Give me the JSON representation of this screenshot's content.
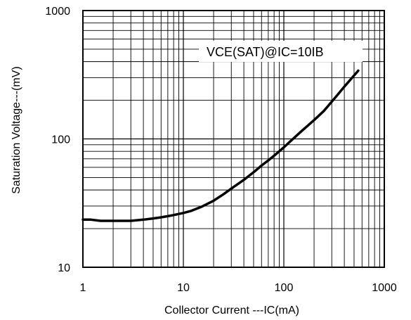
{
  "chart_data": {
    "type": "line",
    "title": "",
    "xlabel": "Collector Current ---IC(mA)",
    "ylabel": "Saturation Voltage---(mV)",
    "xscale": "log",
    "yscale": "log",
    "xlim": [
      1,
      1000
    ],
    "ylim": [
      10,
      1000
    ],
    "grid": true,
    "x_ticks": [
      "1",
      "10",
      "100",
      "1000"
    ],
    "y_ticks": [
      "10",
      "100",
      "1000"
    ],
    "annotation": "VCE(SAT)@IC=10IB",
    "series": [
      {
        "x": [
          1,
          1.2,
          1.5,
          2,
          3,
          4,
          5,
          6,
          7,
          8,
          10,
          12,
          15,
          20,
          25,
          30,
          40,
          50,
          60,
          70,
          80,
          100,
          120,
          150,
          200,
          250,
          300,
          400,
          550
        ],
        "y": [
          23.5,
          23.5,
          23,
          23,
          23,
          23.5,
          24,
          24.5,
          25,
          25.5,
          26.5,
          27.5,
          29.5,
          33,
          37,
          41,
          48,
          55,
          62,
          68,
          74,
          86,
          98,
          115,
          140,
          165,
          195,
          255,
          340
        ]
      }
    ]
  }
}
